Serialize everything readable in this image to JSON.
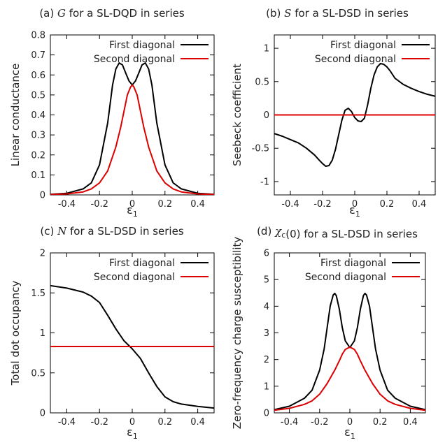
{
  "chart_data": [
    {
      "type": "line",
      "title_prefix": "(a)",
      "title_symbol": "G",
      "title_suffix": "for a SL-DQD in series",
      "xlabel": "ε",
      "xlabel_sub": "1",
      "ylabel": "Linear conductance",
      "xlim": [
        -0.5,
        0.5
      ],
      "ylim": [
        0,
        0.8
      ],
      "xticks": [
        -0.4,
        -0.2,
        0,
        0.2,
        0.4
      ],
      "xtick_labels": [
        "-0.4",
        "-0.2",
        "0",
        "0.2",
        "0.4"
      ],
      "yticks": [
        0,
        0.1,
        0.2,
        0.3,
        0.4,
        0.5,
        0.6,
        0.7,
        0.8
      ],
      "ytick_labels": [
        "0",
        "0.1",
        "0.2",
        "0.3",
        "0.4",
        "0.5",
        "0.6",
        "0.7",
        "0.8"
      ],
      "grid": false,
      "legend": "top-right",
      "series": [
        {
          "name": "First diagonal",
          "color": "#000000",
          "x": [
            -0.5,
            -0.4,
            -0.3,
            -0.25,
            -0.2,
            -0.15,
            -0.12,
            -0.1,
            -0.08,
            -0.06,
            -0.04,
            -0.02,
            0,
            0.02,
            0.04,
            0.06,
            0.08,
            0.1,
            0.12,
            0.15,
            0.2,
            0.25,
            0.3,
            0.4,
            0.5
          ],
          "y": [
            0.003,
            0.008,
            0.03,
            0.06,
            0.15,
            0.36,
            0.55,
            0.63,
            0.66,
            0.65,
            0.61,
            0.57,
            0.55,
            0.57,
            0.61,
            0.65,
            0.66,
            0.63,
            0.55,
            0.36,
            0.15,
            0.06,
            0.03,
            0.008,
            0.003
          ]
        },
        {
          "name": "Second diagonal",
          "color": "#dd0000",
          "x": [
            -0.5,
            -0.4,
            -0.3,
            -0.25,
            -0.2,
            -0.15,
            -0.1,
            -0.07,
            -0.05,
            -0.03,
            -0.01,
            0,
            0.01,
            0.03,
            0.05,
            0.07,
            0.1,
            0.15,
            0.2,
            0.25,
            0.3,
            0.4,
            0.5
          ],
          "y": [
            0.002,
            0.005,
            0.015,
            0.03,
            0.06,
            0.12,
            0.24,
            0.34,
            0.42,
            0.5,
            0.54,
            0.55,
            0.54,
            0.5,
            0.42,
            0.34,
            0.24,
            0.12,
            0.06,
            0.03,
            0.015,
            0.005,
            0.002
          ]
        }
      ]
    },
    {
      "type": "line",
      "title_prefix": "(b)",
      "title_symbol": "S",
      "title_suffix": "for a SL-DSD in series",
      "xlabel": "ε",
      "xlabel_sub": "1",
      "ylabel": "Seebeck coefficient",
      "xlim": [
        -0.5,
        0.5
      ],
      "ylim": [
        -1.2,
        1.2
      ],
      "xticks": [
        -0.4,
        -0.2,
        0,
        0.2,
        0.4
      ],
      "xtick_labels": [
        "-0.4",
        "-0.2",
        "0",
        "0.2",
        "0.4"
      ],
      "yticks": [
        -1,
        -0.5,
        0,
        0.5,
        1
      ],
      "ytick_labels": [
        "-1",
        "-0.5",
        "0",
        "0.5",
        "1"
      ],
      "grid": false,
      "legend": "top-right",
      "series": [
        {
          "name": "First diagonal",
          "color": "#000000",
          "x": [
            -0.5,
            -0.45,
            -0.4,
            -0.35,
            -0.3,
            -0.25,
            -0.22,
            -0.2,
            -0.18,
            -0.16,
            -0.14,
            -0.12,
            -0.1,
            -0.08,
            -0.06,
            -0.04,
            -0.02,
            0,
            0.02,
            0.04,
            0.06,
            0.08,
            0.1,
            0.12,
            0.14,
            0.16,
            0.18,
            0.2,
            0.22,
            0.25,
            0.3,
            0.35,
            0.4,
            0.45,
            0.5
          ],
          "y": [
            -0.28,
            -0.32,
            -0.37,
            -0.42,
            -0.5,
            -0.6,
            -0.68,
            -0.73,
            -0.77,
            -0.76,
            -0.68,
            -0.52,
            -0.3,
            -0.08,
            0.07,
            0.1,
            0.05,
            -0.04,
            -0.09,
            -0.1,
            -0.05,
            0.15,
            0.4,
            0.6,
            0.72,
            0.77,
            0.76,
            0.72,
            0.66,
            0.55,
            0.46,
            0.4,
            0.35,
            0.31,
            0.28
          ]
        },
        {
          "name": "Second diagonal",
          "color": "#dd0000",
          "x": [
            -0.5,
            0.5
          ],
          "y": [
            0,
            0
          ]
        }
      ]
    },
    {
      "type": "line",
      "title_prefix": "(c)",
      "title_symbol": "N",
      "title_suffix": "for a SL-DSD in series",
      "xlabel": "ε",
      "xlabel_sub": "1",
      "ylabel": "Total dot occupancy",
      "xlim": [
        -0.5,
        0.5
      ],
      "ylim": [
        0,
        2
      ],
      "xticks": [
        -0.4,
        -0.2,
        0,
        0.2,
        0.4
      ],
      "xtick_labels": [
        "-0.4",
        "-0.2",
        "0",
        "0.2",
        "0.4"
      ],
      "yticks": [
        0,
        0.5,
        1,
        1.5,
        2
      ],
      "ytick_labels": [
        "0",
        "0.5",
        "1",
        "1.5",
        "2"
      ],
      "grid": false,
      "legend": "top-right",
      "series": [
        {
          "name": "First diagonal",
          "color": "#000000",
          "x": [
            -0.5,
            -0.4,
            -0.3,
            -0.25,
            -0.2,
            -0.15,
            -0.1,
            -0.05,
            0,
            0.05,
            0.1,
            0.15,
            0.2,
            0.25,
            0.3,
            0.4,
            0.5
          ],
          "y": [
            1.59,
            1.56,
            1.51,
            1.46,
            1.38,
            1.22,
            1.05,
            0.9,
            0.8,
            0.68,
            0.5,
            0.33,
            0.2,
            0.14,
            0.11,
            0.08,
            0.06
          ]
        },
        {
          "name": "Second diagonal",
          "color": "#dd0000",
          "x": [
            -0.5,
            0.5
          ],
          "y": [
            0.83,
            0.83
          ]
        }
      ]
    },
    {
      "type": "line",
      "title_prefix": "(d)",
      "title_symbol": "χ",
      "title_symbol_sub": "c",
      "title_suffix": "(0) for a SL-DSD in series",
      "xlabel": "ε",
      "xlabel_sub": "1",
      "ylabel": "Zero-frequency charge susceptibility",
      "xlim": [
        -0.5,
        0.5
      ],
      "ylim": [
        0,
        6
      ],
      "xticks": [
        -0.4,
        -0.2,
        0,
        0.2,
        0.4
      ],
      "xtick_labels": [
        "-0.4",
        "-0.2",
        "0",
        "0.2",
        "0.4"
      ],
      "yticks": [
        0,
        1,
        2,
        3,
        4,
        5,
        6
      ],
      "ytick_labels": [
        "0",
        "1",
        "2",
        "3",
        "4",
        "5",
        "6"
      ],
      "grid": false,
      "legend": "top-right",
      "series": [
        {
          "name": "First diagonal",
          "color": "#000000",
          "x": [
            -0.5,
            -0.4,
            -0.3,
            -0.25,
            -0.2,
            -0.17,
            -0.15,
            -0.13,
            -0.11,
            -0.1,
            -0.09,
            -0.07,
            -0.05,
            -0.03,
            0,
            0.03,
            0.05,
            0.07,
            0.09,
            0.1,
            0.11,
            0.13,
            0.15,
            0.17,
            0.2,
            0.25,
            0.3,
            0.4,
            0.5
          ],
          "y": [
            0.12,
            0.25,
            0.55,
            0.85,
            1.6,
            2.4,
            3.2,
            4.0,
            4.42,
            4.48,
            4.4,
            3.9,
            3.2,
            2.7,
            2.45,
            2.7,
            3.2,
            3.9,
            4.4,
            4.48,
            4.42,
            4.0,
            3.2,
            2.4,
            1.6,
            0.85,
            0.55,
            0.25,
            0.12
          ]
        },
        {
          "name": "Second diagonal",
          "color": "#dd0000",
          "x": [
            -0.5,
            -0.4,
            -0.3,
            -0.25,
            -0.2,
            -0.15,
            -0.1,
            -0.07,
            -0.05,
            -0.03,
            0,
            0.03,
            0.05,
            0.07,
            0.1,
            0.15,
            0.2,
            0.25,
            0.3,
            0.4,
            0.5
          ],
          "y": [
            0.1,
            0.17,
            0.32,
            0.45,
            0.7,
            1.1,
            1.6,
            1.95,
            2.2,
            2.38,
            2.47,
            2.38,
            2.2,
            1.95,
            1.6,
            1.1,
            0.7,
            0.45,
            0.32,
            0.17,
            0.1
          ]
        }
      ]
    }
  ]
}
